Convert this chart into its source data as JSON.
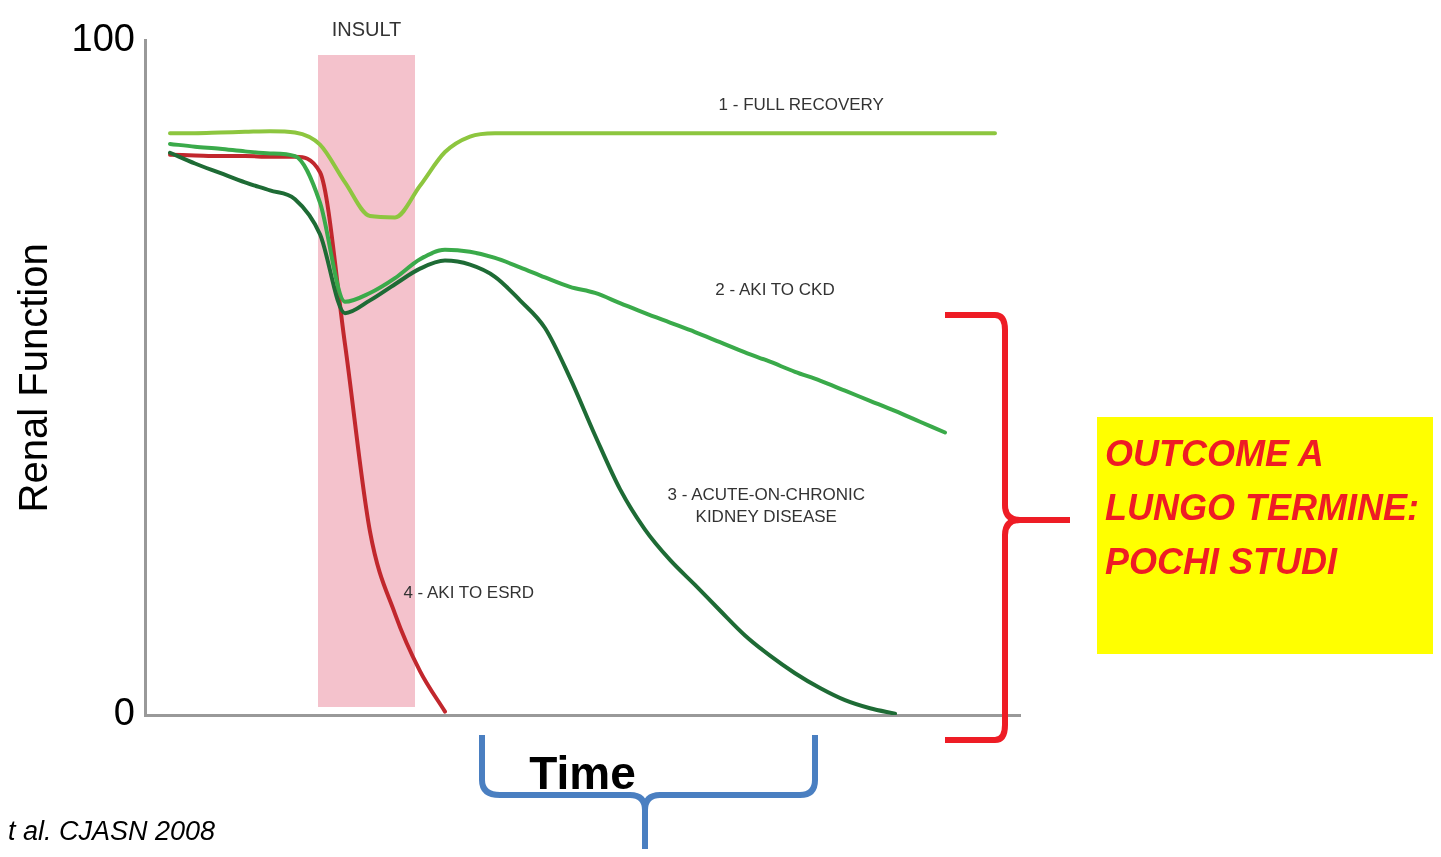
{
  "chart_data": {
    "type": "line",
    "ylabel": "Renal Function",
    "xlabel": "Time",
    "ylim": [
      0,
      100
    ],
    "yticks": [
      0,
      100
    ],
    "tick_labels": "y",
    "grid": false,
    "legend": false,
    "marker": "none",
    "line_style": "solid",
    "categories": [
      null,
      null,
      null,
      null,
      null,
      null,
      null,
      null,
      null,
      null,
      null,
      null,
      null,
      null,
      null,
      null,
      null,
      null,
      null,
      null,
      null,
      null,
      null,
      null,
      null,
      null,
      null,
      null,
      null,
      null,
      null,
      null,
      null,
      null,
      null,
      null
    ],
    "series": [
      {
        "name": "1 - FULL RECOVERY",
        "color": "#8dc63f",
        "values": [
          null,
          86.3,
          86.3,
          86.4,
          86.5,
          86.6,
          86.4,
          84.6,
          79.0,
          74.0,
          73.8,
          78.5,
          83.5,
          85.8,
          86.3,
          86.3,
          86.3,
          86.3,
          86.3,
          86.3,
          86.3,
          86.3,
          86.3,
          86.3,
          86.3,
          86.3,
          86.3,
          86.3,
          86.3,
          86.3,
          86.3,
          86.3,
          86.3,
          86.3,
          86.3,
          null
        ]
      },
      {
        "name": "2 - AKI TO CKD",
        "color": "#3aaa4a",
        "values": [
          null,
          84.7,
          84.3,
          84.0,
          83.6,
          83.3,
          82.9,
          76,
          61.3,
          62.6,
          64.8,
          67.6,
          69.0,
          68.7,
          67.8,
          66.4,
          64.9,
          63.5,
          62.6,
          61.1,
          59.6,
          58.2,
          56.8,
          55.3,
          53.8,
          52.4,
          50.9,
          49.6,
          48.1,
          46.6,
          45.1,
          43.5,
          41.9,
          null,
          null,
          null
        ]
      },
      {
        "name": "3 - ACUTE-ON-CHRONIC\nKIDNEY DISEASE",
        "color": "#1e6b35",
        "values": [
          null,
          83.4,
          81.8,
          80.4,
          79.0,
          77.8,
          76.5,
          71.3,
          59.6,
          61.5,
          63.9,
          66.2,
          67.4,
          66.8,
          65.0,
          61.5,
          57.4,
          50,
          41.5,
          33.5,
          27.5,
          23,
          19.3,
          15.5,
          11.8,
          8.8,
          6.2,
          4,
          2.2,
          1,
          0.2,
          null,
          null,
          null,
          null,
          null
        ]
      },
      {
        "name": "4 - AKI TO ESRD",
        "color": "#c1272d",
        "values": [
          null,
          83.1,
          83.0,
          82.9,
          82.9,
          82.8,
          82.8,
          80.5,
          55,
          27.2,
          15,
          6.5,
          0.5,
          null,
          null,
          null,
          null,
          null,
          null,
          null,
          null,
          null,
          null,
          null,
          null,
          null,
          null,
          null,
          null,
          null,
          null,
          null,
          null,
          null,
          null,
          null
        ]
      }
    ],
    "annotations": [
      "INSULT",
      "OUTCOME A LUNGO TERMINE: POCHI STUDI",
      "t al. CJASN 2008"
    ]
  }
}
